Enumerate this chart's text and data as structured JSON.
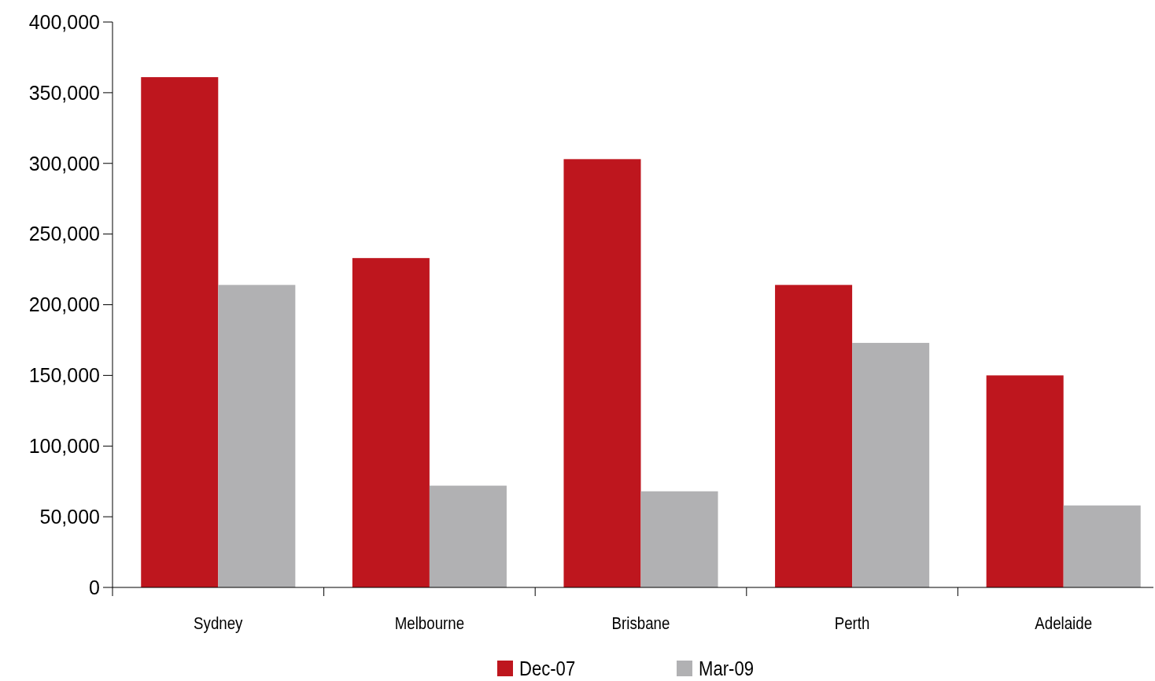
{
  "chart_data": {
    "type": "bar",
    "categories": [
      "Sydney",
      "Melbourne",
      "Brisbane",
      "Perth",
      "Adelaide"
    ],
    "series": [
      {
        "name": "Dec-07",
        "color": "#be161e",
        "values": [
          361000,
          233000,
          303000,
          214000,
          150000
        ]
      },
      {
        "name": "Mar-09",
        "color": "#b1b1b3",
        "values": [
          214000,
          72000,
          68000,
          173000,
          58000
        ]
      }
    ],
    "ylim": [
      0,
      400000
    ],
    "yticks": [
      {
        "value": 0,
        "label": "0"
      },
      {
        "value": 50000,
        "label": "50,000"
      },
      {
        "value": 100000,
        "label": "100,000"
      },
      {
        "value": 150000,
        "label": "150,000"
      },
      {
        "value": 200000,
        "label": "200,000"
      },
      {
        "value": 250000,
        "label": "250,000"
      },
      {
        "value": 300000,
        "label": "300,000"
      },
      {
        "value": 350000,
        "label": "350,000"
      },
      {
        "value": 400000,
        "label": "400,000"
      }
    ],
    "grid": false,
    "legend": "bottom"
  }
}
